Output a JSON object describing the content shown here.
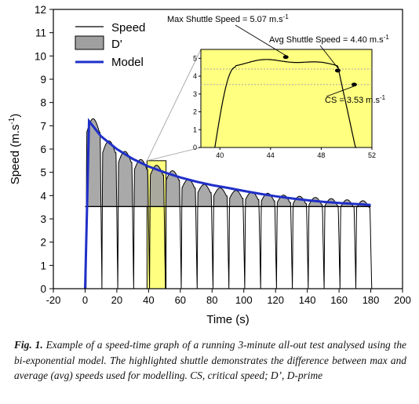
{
  "chart_data": {
    "type": "line",
    "xlabel": "Time (s)",
    "ylabel": "Speed (m.s-1)",
    "ylabel_base": "Speed (m.s",
    "ylabel_sup": "-1",
    "ylabel_end": ")",
    "xlim": [
      -20,
      200
    ],
    "ylim": [
      0,
      12
    ],
    "xticks": [
      -20,
      0,
      20,
      40,
      60,
      80,
      100,
      120,
      140,
      160,
      180,
      200
    ],
    "yticks": [
      0,
      1,
      2,
      3,
      4,
      5,
      6,
      7,
      8,
      9,
      10,
      11,
      12
    ],
    "legend": {
      "position": "top-left",
      "entries": [
        "Speed",
        "D'",
        "Model"
      ]
    },
    "colors": {
      "speed": "#000000",
      "dprime": "#a0a0a0",
      "model": "#1f2fc8",
      "highlight": "#ffff80"
    },
    "critical_speed": 3.53,
    "shuttle_peaks": [
      7.3,
      6.35,
      5.9,
      5.55,
      5.3,
      5.07,
      4.7,
      4.48,
      4.33,
      4.22,
      4.16,
      4.1,
      4.02,
      3.97,
      3.92,
      3.87,
      3.82,
      3.78
    ],
    "model": {
      "x": [
        0,
        2.5,
        10,
        20,
        30,
        40,
        50,
        60,
        70,
        80,
        90,
        100,
        110,
        120,
        130,
        140,
        150,
        160,
        170,
        180
      ],
      "y": [
        0,
        7.2,
        6.55,
        6.0,
        5.58,
        5.25,
        5.0,
        4.78,
        4.6,
        4.45,
        4.33,
        4.2,
        4.08,
        3.97,
        3.88,
        3.8,
        3.73,
        3.68,
        3.64,
        3.6
      ]
    },
    "highlight_box": {
      "x": [
        39,
        51
      ],
      "y": [
        0,
        5.5
      ]
    },
    "inset": {
      "xticks": [
        40,
        44,
        48,
        52
      ],
      "yticks": [
        0,
        1,
        2,
        3,
        4,
        5
      ],
      "xlim": [
        38.5,
        52
      ],
      "ylim": [
        0,
        5.5
      ],
      "max_speed": 5.07,
      "avg_speed": 4.4,
      "critical_speed": 3.53,
      "annotations": {
        "max": "Max Shuttle Speed = 5.07 m.s-1",
        "avg": "Avg Shuttle Speed = 4.40 m.s-1",
        "cs": "CS = 3.53 m.s-1"
      }
    }
  },
  "caption": {
    "label": "Fig. 1.",
    "text": "Example of a speed-time graph of a running 3-minute all-out test analysed using the bi-exponential model. The highlighted shuttle demonstrates the difference between max and average (avg) speeds used for modelling. CS, critical speed; D’, D-prime"
  }
}
